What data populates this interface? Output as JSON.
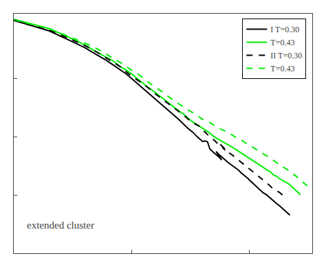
{
  "chart_data": {
    "type": "line",
    "annotation": "extended cluster",
    "log": true,
    "xlim": [
      1,
      340
    ],
    "ylim": [
      0.0001,
      1.3
    ],
    "xticks": [
      1,
      10,
      100
    ],
    "yticks": [
      0.0001,
      0.001,
      0.01,
      0.1,
      1
    ],
    "tick_labels": false,
    "grid": false,
    "legend": "upper right",
    "series": [
      {
        "name": "I T=0.30",
        "color": "#000000",
        "line_style": "solid",
        "x": [
          1,
          2,
          3,
          4,
          5,
          6,
          7,
          8,
          9,
          10,
          12,
          14,
          16,
          18,
          20,
          22,
          25,
          28,
          30,
          33,
          36,
          40,
          42,
          44,
          46,
          50,
          55,
          58,
          52,
          56,
          60,
          65,
          70,
          75,
          80,
          85,
          90,
          95,
          100,
          110,
          120,
          130,
          140,
          150,
          160,
          170,
          180,
          190,
          200,
          210,
          220
        ],
        "values": [
          1.0,
          0.66,
          0.45,
          0.34,
          0.26,
          0.21,
          0.17,
          0.14,
          0.12,
          0.1,
          0.073,
          0.056,
          0.044,
          0.036,
          0.03,
          0.025,
          0.02,
          0.016,
          0.014,
          0.012,
          0.01,
          0.0083,
          0.0085,
          0.0082,
          0.0062,
          0.0053,
          0.0045,
          0.004,
          0.0056,
          0.0048,
          0.0042,
          0.0037,
          0.0033,
          0.003,
          0.0027,
          0.0024,
          0.0022,
          0.002,
          0.0018,
          0.0015,
          0.0013,
          0.0011,
          0.001,
          0.00088,
          0.00079,
          0.00071,
          0.00065,
          0.00059,
          0.00054,
          0.00049,
          0.00045
        ]
      },
      {
        "name": "T=0.43",
        "color": "#00ee00",
        "line_style": "solid",
        "x": [
          1,
          2,
          3,
          4,
          5,
          6,
          7,
          8,
          9,
          10,
          12,
          14,
          16,
          18,
          20,
          22,
          25,
          28,
          30,
          33,
          36,
          40,
          45,
          50,
          55,
          60,
          65,
          70,
          75,
          80,
          85,
          90,
          95,
          100,
          110,
          120,
          130,
          140,
          150,
          160,
          170,
          180,
          190,
          200,
          210,
          220,
          230,
          240,
          250,
          260,
          270
        ],
        "values": [
          1.05,
          0.72,
          0.5,
          0.38,
          0.29,
          0.24,
          0.2,
          0.16,
          0.14,
          0.12,
          0.089,
          0.069,
          0.057,
          0.047,
          0.04,
          0.034,
          0.028,
          0.024,
          0.021,
          0.018,
          0.016,
          0.014,
          0.012,
          0.01,
          0.009,
          0.0082,
          0.0074,
          0.0068,
          0.0062,
          0.0057,
          0.0053,
          0.0049,
          0.0046,
          0.0043,
          0.0038,
          0.0034,
          0.003,
          0.0027,
          0.0025,
          0.0022,
          0.0021,
          0.0019,
          0.0018,
          0.0017,
          0.0016,
          0.0015,
          0.00137,
          0.00126,
          0.00117,
          0.00108,
          0.00101
        ]
      },
      {
        "name": "II T=0.30",
        "color": "#000000",
        "line_style": "dash",
        "x": [
          1,
          2,
          3,
          4,
          5,
          6,
          7,
          8,
          9,
          10,
          12,
          14,
          16,
          18,
          20,
          22,
          25,
          28,
          32,
          36,
          38,
          40,
          42,
          46,
          50,
          55,
          58,
          62,
          56,
          59,
          63,
          67,
          72,
          77,
          83,
          89,
          95,
          102,
          110,
          118,
          127,
          136,
          146,
          157,
          168,
          180,
          193
        ],
        "values": [
          1.0,
          0.68,
          0.48,
          0.37,
          0.29,
          0.23,
          0.19,
          0.16,
          0.13,
          0.11,
          0.086,
          0.068,
          0.054,
          0.045,
          0.038,
          0.033,
          0.027,
          0.023,
          0.018,
          0.016,
          0.015,
          0.013,
          0.012,
          0.01,
          0.0088,
          0.0073,
          0.0068,
          0.0059,
          0.0075,
          0.0068,
          0.006,
          0.0053,
          0.0048,
          0.0043,
          0.0038,
          0.0034,
          0.003,
          0.0027,
          0.0024,
          0.0021,
          0.0019,
          0.0017,
          0.0015,
          0.0013,
          0.0012,
          0.0011,
          0.00098
        ]
      },
      {
        "name": "T=0.43",
        "color": "#00ee00",
        "line_style": "dash",
        "x": [
          1,
          2,
          3,
          4,
          5,
          6,
          7,
          8,
          9,
          10,
          12,
          14,
          16,
          18,
          20,
          22,
          25,
          28,
          30,
          33,
          36,
          40,
          45,
          50,
          55,
          60,
          65,
          70,
          75,
          80,
          85,
          90,
          95,
          100,
          110,
          120,
          130,
          140,
          150,
          160,
          170,
          180,
          190,
          200,
          210,
          220,
          230,
          240,
          250,
          260,
          270,
          280,
          290,
          300,
          320,
          340
        ],
        "values": [
          1.02,
          0.72,
          0.52,
          0.41,
          0.33,
          0.27,
          0.22,
          0.19,
          0.16,
          0.14,
          0.11,
          0.085,
          0.071,
          0.06,
          0.051,
          0.044,
          0.037,
          0.032,
          0.029,
          0.026,
          0.023,
          0.02,
          0.018,
          0.016,
          0.014,
          0.013,
          0.012,
          0.011,
          0.01,
          0.0095,
          0.0088,
          0.0082,
          0.0077,
          0.0073,
          0.0065,
          0.0058,
          0.0052,
          0.0047,
          0.0043,
          0.0039,
          0.0036,
          0.0033,
          0.0031,
          0.0029,
          0.0027,
          0.0025,
          0.0024,
          0.0022,
          0.0021,
          0.0019,
          0.0018,
          0.0017,
          0.0016,
          0.0015,
          0.0014,
          0.0013
        ]
      }
    ]
  }
}
